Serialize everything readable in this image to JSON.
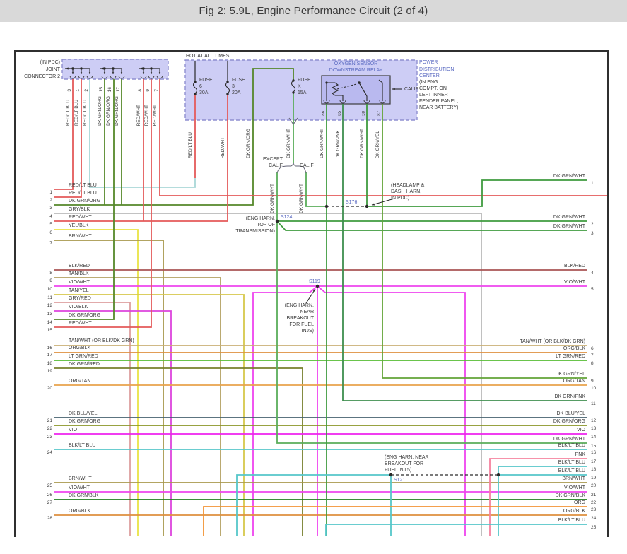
{
  "title": "Fig 2: 5.9L, Engine Performance Circuit (2 of 4)",
  "colors": {
    "red": "#e45a5a",
    "ltblu": "#a9d7d7",
    "gry": "#b9b9b9",
    "yel": "#e9e345",
    "brnwht": "#a8984c",
    "blkred": "#aa5555",
    "tanblk": "#b3a061",
    "viowht": "#ee44ee",
    "tanyel": "#d6c84b",
    "gryred": "#dd9f9f",
    "vioblk": "#dd44dd",
    "dkgrnorg": "#55882a",
    "dkgrnorg2": "#8a9426",
    "tanwht": "#c9af74",
    "orgblk": "#de8f3e",
    "ltgrnred": "#55bb33",
    "dkgrnred": "#77802d",
    "orgtan": "#e8a34c",
    "dkbluyel": "#45616e",
    "vio": "#ee22ee",
    "blkltblu": "#55c6c9",
    "dkgrnwht": "#3f9b3f",
    "dkgrnwht2": "#5aad5a",
    "dkgrnpnk": "#3e8e4e",
    "dkgrnyel": "#63a437",
    "pnk": "#f5829f",
    "dkgrnblk": "#1e7d1e",
    "org": "#f29334",
    "ink": "#2a2a2a",
    "boxfill": "#cdcdf5",
    "boxline": "#8f8fd0",
    "relayfill": "#b9b9ef",
    "bluetext": "#5b6bc2"
  },
  "joint_connector": {
    "note": [
      "(IN PDC)",
      "JOINT",
      "CONNECTOR 2"
    ],
    "pins": [
      {
        "n": "3",
        "label": "RED/LT BLU"
      },
      {
        "n": "1",
        "label": "RED/LT BLU"
      },
      {
        "n": "2",
        "label": "RED/LT BLU"
      },
      {
        "n": "15",
        "label": "DK GRN/ORG"
      },
      {
        "n": "16",
        "label": "DK GRN/ORG"
      },
      {
        "n": "17",
        "label": "DK GRN/ORG"
      },
      {
        "n": "8",
        "label": "RED/WHT"
      },
      {
        "n": "9",
        "label": "RED/WHT"
      },
      {
        "n": "7",
        "label": "RED/WHT"
      }
    ]
  },
  "pdc": {
    "hot": "HOT AT ALL TIMES",
    "fuses": [
      {
        "name": "FUSE",
        "id": "6",
        "amps": "30A"
      },
      {
        "name": "FUSE",
        "id": "3",
        "amps": "20A"
      },
      {
        "name": "FUSE",
        "id": "K",
        "amps": "15A"
      }
    ],
    "note_blue": [
      "POWER",
      "DISTRIBUTION",
      "CENTER"
    ],
    "note_black": [
      "(IN ENG",
      "COMPT, ON",
      "LEFT INNER",
      "FENDER PANEL,",
      "NEAR BATTERY)"
    ]
  },
  "relay": {
    "title": [
      "OXYGEN SENSOR",
      "DOWNSTREAM RELAY"
    ],
    "pins": [
      "86",
      "85",
      "30",
      "87"
    ],
    "calif": "CALIF"
  },
  "feeds": [
    "RED/LT BLU",
    "RED/WHT",
    "DK GRN/ORG",
    "DK GRN/WHT",
    "DK GRN/WHT",
    "DK GRN/PNK",
    "DK GRN/WHT",
    "DK GRN/YEL"
  ],
  "branch": {
    "except_line1": "EXCEPT",
    "except_line2": "CALIF",
    "calif": "CALIF",
    "left_label": "DK GRN/WHT",
    "right_label": "DK GRN/WHT"
  },
  "splices": {
    "s124": {
      "id": "S124",
      "note": [
        "(ENG HARN,",
        "TOP OF",
        "TRANSMISSION)"
      ]
    },
    "s176": {
      "id": "S176",
      "note": [
        "(HEADLAMP &",
        "DASH HARN,",
        "IN PDC)"
      ]
    },
    "s119": {
      "id": "S119",
      "note": [
        "(ENG HARN,",
        "NEAR",
        "BREAKOUT",
        "FOR FUEL",
        "INJS)"
      ]
    },
    "s121": {
      "id": "S121",
      "note": [
        "(ENG HARN, NEAR",
        "BREAKOUT FOR",
        "FUEL INJ 5)"
      ]
    }
  },
  "left_pins": [
    {
      "n": "1",
      "label": "RED/LT BLU"
    },
    {
      "n": "2",
      "label": "RED/LT BLU"
    },
    {
      "n": "3",
      "label": "DK GRN/ORG"
    },
    {
      "n": "4",
      "label": "GRY/BLK"
    },
    {
      "n": "5",
      "label": "RED/WHT"
    },
    {
      "n": "6",
      "label": "YEL/BLK"
    },
    {
      "n": "7",
      "label": "BRN/WHT"
    },
    {
      "n": "8",
      "label": "BLK/RED"
    },
    {
      "n": "9",
      "label": "TAN/BLK"
    },
    {
      "n": "10",
      "label": "VIO/WHT"
    },
    {
      "n": "11",
      "label": "TAN/YEL"
    },
    {
      "n": "12",
      "label": "GRY/RED"
    },
    {
      "n": "13",
      "label": "VIO/BLK"
    },
    {
      "n": "14",
      "label": "DK GRN/ORG"
    },
    {
      "n": "15",
      "label": "RED/WHT"
    },
    {
      "n": "16",
      "label": "TAN/WHT (OR BLK/DK GRN)"
    },
    {
      "n": "17",
      "label": "ORG/BLK"
    },
    {
      "n": "18",
      "label": "LT GRN/RED"
    },
    {
      "n": "19",
      "label": "DK GRN/RED"
    },
    {
      "n": "20",
      "label": "ORG/TAN"
    },
    {
      "n": "21",
      "label": "DK BLU/YEL"
    },
    {
      "n": "22",
      "label": "DK GRN/ORG"
    },
    {
      "n": "23",
      "label": "VIO"
    },
    {
      "n": "24",
      "label": "BLK/LT BLU"
    },
    {
      "n": "25",
      "label": "BRN/WHT"
    },
    {
      "n": "26",
      "label": "VIO/WHT"
    },
    {
      "n": "27",
      "label": "DK GRN/BLK"
    },
    {
      "n": "28",
      "label": "ORG/BLK"
    }
  ],
  "right_pins": [
    {
      "n": "1",
      "label": "DK GRN/WHT"
    },
    {
      "n": "2",
      "label": "DK GRN/WHT"
    },
    {
      "n": "3",
      "label": "DK GRN/WHT"
    },
    {
      "n": "4",
      "label": "BLK/RED"
    },
    {
      "n": "5",
      "label": "VIO/WHT"
    },
    {
      "n": "6",
      "label": "TAN/WHT (OR BLK/DK GRN)"
    },
    {
      "n": "7",
      "label": "ORG/BLK"
    },
    {
      "n": "8",
      "label": "LT GRN/RED"
    },
    {
      "n": "9",
      "label": "DK GRN/YEL"
    },
    {
      "n": "10",
      "label": "ORG/TAN"
    },
    {
      "n": "11",
      "label": "DK GRN/PNK"
    },
    {
      "n": "12",
      "label": "DK BLU/YEL"
    },
    {
      "n": "13",
      "label": "DK GRN/ORG"
    },
    {
      "n": "14",
      "label": "VIO"
    },
    {
      "n": "15",
      "label": "DK GRN/WHT"
    },
    {
      "n": "16",
      "label": "BLK/LT BLU"
    },
    {
      "n": "17",
      "label": "PNK"
    },
    {
      "n": "18",
      "label": "BLK/LT BLU"
    },
    {
      "n": "19",
      "label": "BLK/LT BLU"
    },
    {
      "n": "20",
      "label": "BRN/WHT"
    },
    {
      "n": "21",
      "label": "VIO/WHT"
    },
    {
      "n": "22",
      "label": "DK GRN/BLK"
    },
    {
      "n": "23",
      "label": "ORG"
    },
    {
      "n": "24",
      "label": "ORG/BLK"
    },
    {
      "n": "25",
      "label": "BLK/LT BLU"
    }
  ]
}
